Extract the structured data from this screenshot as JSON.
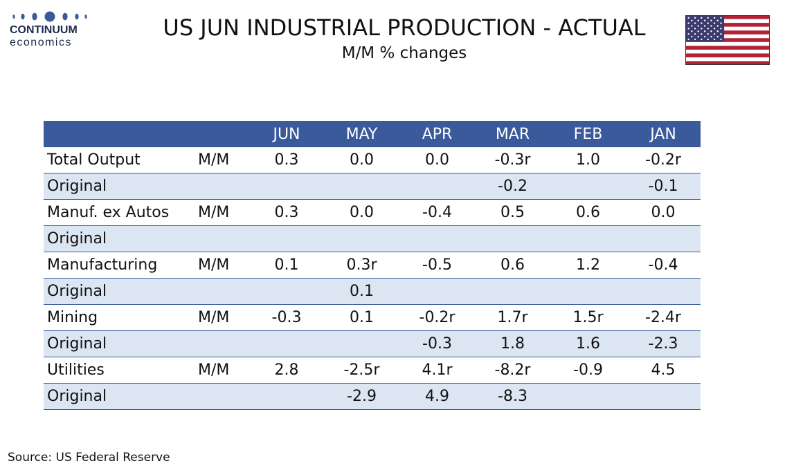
{
  "brand": {
    "line1": "CONTINUUM",
    "line2": "economics"
  },
  "header": {
    "title": "US JUN INDUSTRIAL PRODUCTION - ACTUAL",
    "subtitle": "M/M % changes"
  },
  "flag_icon": "us-flag-icon",
  "colors": {
    "header_bg": "#3a5a9c",
    "alt_row_bg": "#dce6f2",
    "logo_blue": "#3a5a9c"
  },
  "chart_data": {
    "type": "table",
    "columns": [
      "",
      "",
      "JUN",
      "MAY",
      "APR",
      "MAR",
      "FEB",
      "JAN"
    ],
    "rows": [
      [
        "Total Output",
        "M/M",
        "0.3",
        "0.0",
        "0.0",
        "-0.3r",
        "1.0",
        "-0.2r"
      ],
      [
        "Original",
        "",
        "",
        "",
        "",
        "-0.2",
        "",
        "-0.1"
      ],
      [
        "Manuf. ex Autos",
        "M/M",
        "0.3",
        "0.0",
        "-0.4",
        "0.5",
        "0.6",
        "0.0"
      ],
      [
        "Original",
        "",
        "",
        "",
        "",
        "",
        "",
        ""
      ],
      [
        "Manufacturing",
        "M/M",
        "0.1",
        "0.3r",
        "-0.5",
        "0.6",
        "1.2",
        "-0.4"
      ],
      [
        "Original",
        "",
        "",
        "0.1",
        "",
        "",
        "",
        ""
      ],
      [
        "Mining",
        "M/M",
        "-0.3",
        "0.1",
        "-0.2r",
        "1.7r",
        "1.5r",
        "-2.4r"
      ],
      [
        "Original",
        "",
        "",
        "",
        "-0.3",
        "1.8",
        "1.6",
        "-2.3"
      ],
      [
        "Utilities",
        "M/M",
        "2.8",
        "-2.5r",
        "4.1r",
        "-8.2r",
        "-0.9",
        "4.5"
      ],
      [
        "Original",
        "",
        "",
        "-2.9",
        "4.9",
        "-8.3",
        "",
        ""
      ]
    ]
  },
  "footer": {
    "source": "Source: US Federal Reserve"
  }
}
